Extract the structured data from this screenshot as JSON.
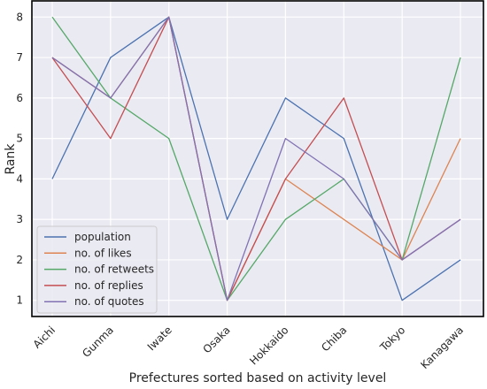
{
  "chart_data": {
    "type": "line",
    "xlabel": "Prefectures sorted based on activity level",
    "ylabel": "Rank",
    "categories": [
      "Aichi",
      "Gunma",
      "Iwate",
      "Osaka",
      "Hokkaido",
      "Chiba",
      "Tokyo",
      "Kanagawa"
    ],
    "yticks": [
      "1",
      "2",
      "3",
      "4",
      "5",
      "6",
      "7",
      "8"
    ],
    "ylim": [
      0.6,
      8.4
    ],
    "grid": true,
    "legend_position": "lower-left",
    "series": [
      {
        "name": "population",
        "color": "#4c72b0",
        "values": [
          4,
          7,
          8,
          3,
          6,
          5,
          1,
          2
        ]
      },
      {
        "name": "no. of likes",
        "color": "#dd8452",
        "values": [
          7,
          6,
          8,
          1,
          4,
          3,
          2,
          5
        ]
      },
      {
        "name": "no. of retweets",
        "color": "#55a868",
        "values": [
          8,
          6,
          5,
          1,
          3,
          4,
          2,
          7
        ]
      },
      {
        "name": "no. of replies",
        "color": "#c44e52",
        "values": [
          7,
          5,
          8,
          1,
          4,
          6,
          2,
          3
        ]
      },
      {
        "name": "no. of quotes",
        "color": "#8172b3",
        "values": [
          7,
          6,
          8,
          1,
          5,
          4,
          2,
          3
        ]
      }
    ]
  }
}
